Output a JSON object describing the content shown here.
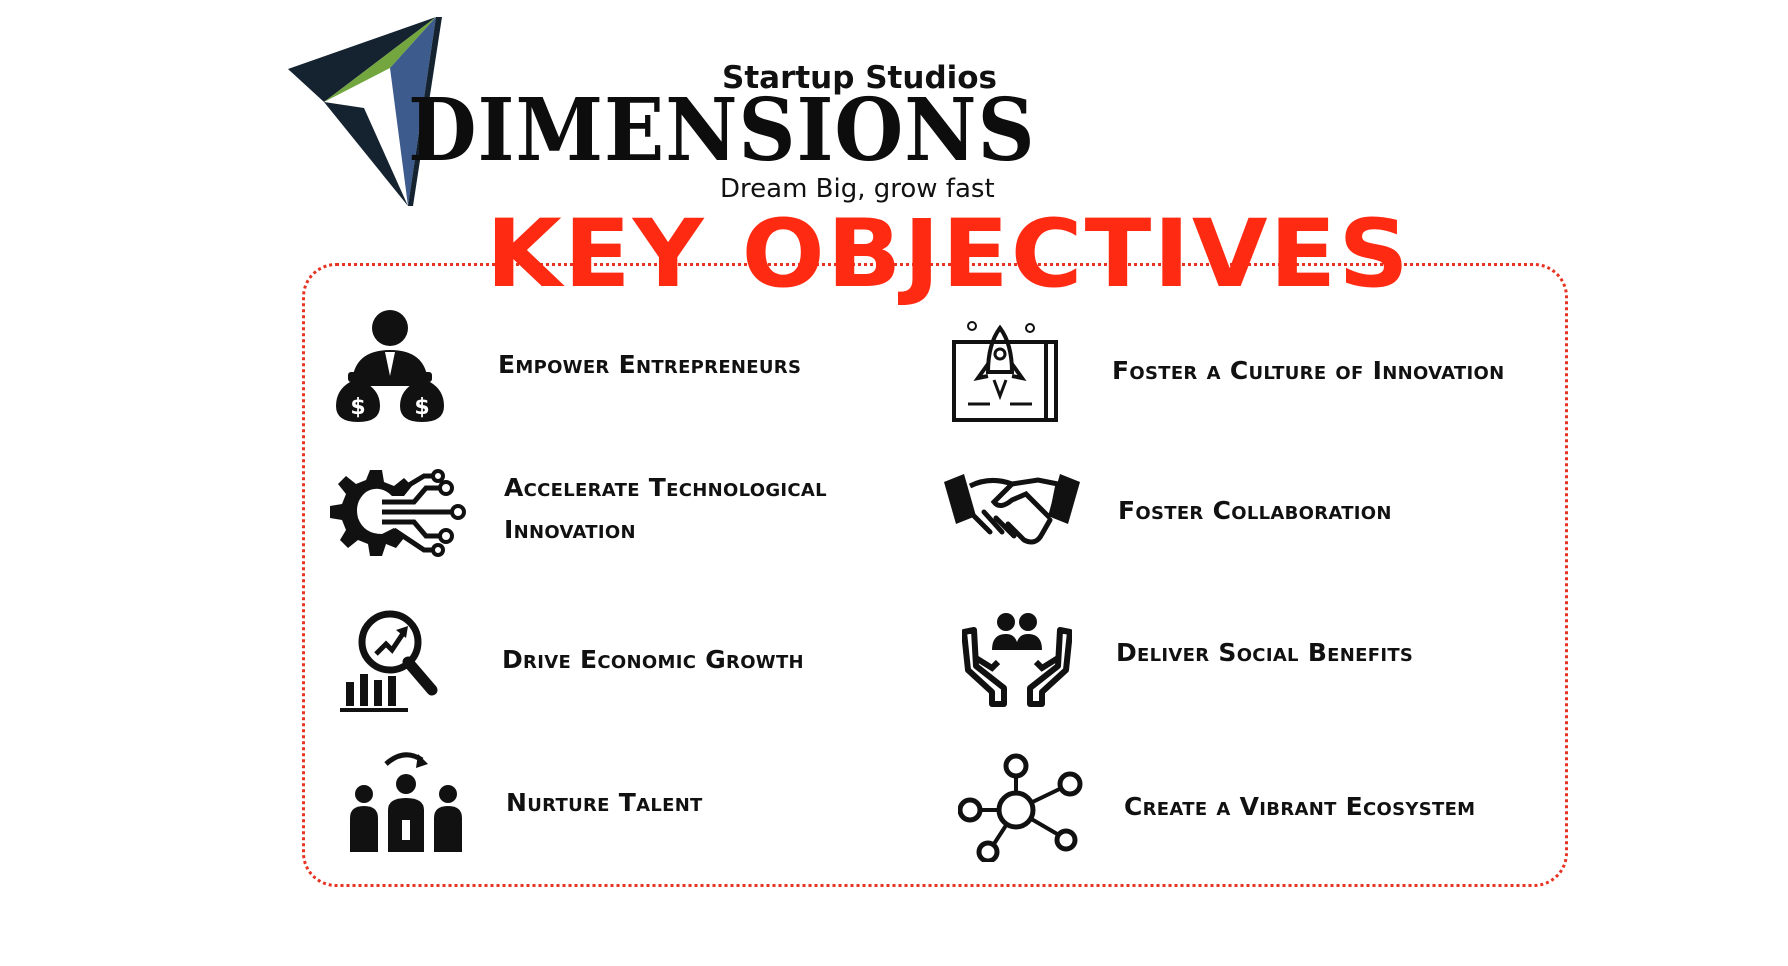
{
  "brand": {
    "top": "Startup Studios",
    "name": "DIMENSIONS",
    "tagline": "Dream Big, grow fast",
    "colors": {
      "green": "#74a63f",
      "blue": "#3d5c8d",
      "dark": "#14232f"
    }
  },
  "heading": {
    "text": "KEY OBJECTIVES",
    "color": "#ff2a12"
  },
  "frame": {
    "border_color": "#e63322"
  },
  "objectives": {
    "left": [
      {
        "label": "Empower Entrepreneurs",
        "icon": "investor-money-bags-icon"
      },
      {
        "label_line1": "Accelerate Technological",
        "label_line2": "Innovation",
        "icon": "gear-circuit-icon"
      },
      {
        "label": "Drive Economic Growth",
        "icon": "magnifier-growth-chart-icon"
      },
      {
        "label": "Nurture Talent",
        "icon": "talent-selection-icon"
      }
    ],
    "right": [
      {
        "label": "Foster a Culture of Innovation",
        "icon": "rocket-blueprint-icon"
      },
      {
        "label": "Foster Collaboration",
        "icon": "handshake-icon"
      },
      {
        "label": "Deliver Social Benefits",
        "icon": "hands-people-icon"
      },
      {
        "label": "Create a Vibrant Ecosystem",
        "icon": "network-nodes-icon"
      }
    ]
  }
}
